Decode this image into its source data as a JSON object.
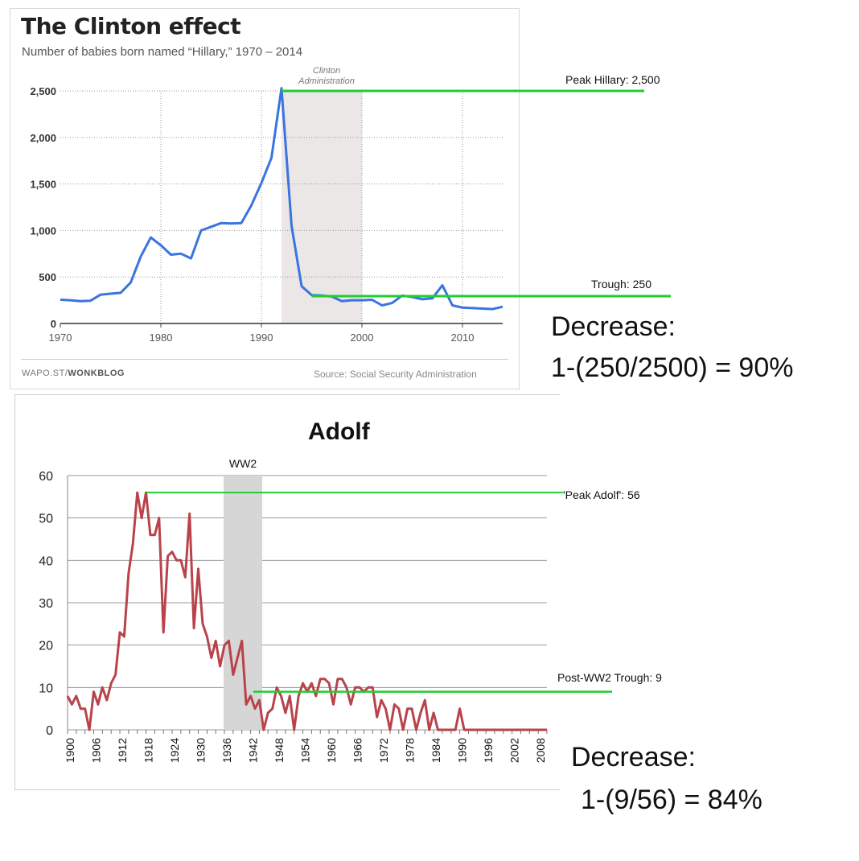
{
  "colors": {
    "hillary_line": "#3a74e0",
    "adolf_line": "#b9434a",
    "annotation_line": "#22cc33",
    "shade_clinton": "#ebe7e6",
    "shade_ww2": "#d6d6d6"
  },
  "top_panel": {
    "footer_left_prefix": "WAPO.ST/",
    "footer_left_bold": "WONKBLOG",
    "footer_right": "Source: Social Security Administration",
    "peak_label": "Peak Hillary: 2,500",
    "trough_label": "Trough: 250",
    "decrease_label": "Decrease:",
    "decrease_formula": "1-(250/2500) = 90%"
  },
  "bottom_panel": {
    "peak_label": "'Peak Adolf': 56",
    "trough_label": "Post-WW2 Trough: 9",
    "decrease_label": "Decrease:",
    "decrease_formula": "1-(9/56) = 84%"
  },
  "chart_data": [
    {
      "type": "line",
      "title": "The Clinton effect",
      "subtitle": "Number of babies born named “Hillary,” 1970 – 2014",
      "xlabel": "",
      "ylabel": "",
      "xlim": [
        1970,
        2014
      ],
      "ylim": [
        0,
        2500
      ],
      "xticks": [
        1970,
        1980,
        1990,
        2000,
        2010
      ],
      "xtick_labels": [
        "1970",
        "1980",
        "1990",
        "2000",
        "2010"
      ],
      "yticks": [
        0,
        500,
        1000,
        1500,
        2000,
        2500
      ],
      "ytick_labels": [
        "0",
        "500",
        "1,000",
        "1,500",
        "2,000",
        "2,500"
      ],
      "grid": true,
      "shaded_region": {
        "label": "Clinton Administration",
        "x": [
          1992,
          2000
        ]
      },
      "annotations": [
        {
          "label": "Peak Hillary: 2,500",
          "x_from": 1992,
          "y": 2500
        },
        {
          "label": "Trough: 250",
          "x_from": 1995,
          "y": 320
        }
      ],
      "x": [
        1970,
        1971,
        1972,
        1973,
        1974,
        1975,
        1976,
        1977,
        1978,
        1979,
        1980,
        1981,
        1982,
        1983,
        1984,
        1985,
        1986,
        1987,
        1988,
        1989,
        1990,
        1991,
        1992,
        1993,
        1994,
        1995,
        1996,
        1997,
        1998,
        1999,
        2000,
        2001,
        2002,
        2003,
        2004,
        2005,
        2006,
        2007,
        2008,
        2009,
        2010,
        2011,
        2012,
        2013,
        2014
      ],
      "y": [
        255,
        250,
        240,
        245,
        310,
        320,
        330,
        440,
        720,
        925,
        840,
        740,
        750,
        700,
        1000,
        1040,
        1080,
        1075,
        1080,
        1270,
        1510,
        1780,
        2530,
        1050,
        400,
        305,
        300,
        290,
        240,
        250,
        250,
        255,
        195,
        220,
        300,
        285,
        260,
        270,
        410,
        195,
        170,
        165,
        160,
        155,
        180
      ]
    },
    {
      "type": "line",
      "title": "Adolf",
      "xlabel": "",
      "ylabel": "",
      "xlim": [
        1900,
        2010
      ],
      "ylim": [
        0,
        60
      ],
      "yticks": [
        0,
        10,
        20,
        30,
        40,
        50,
        60
      ],
      "ytick_labels": [
        "0",
        "10",
        "20",
        "30",
        "40",
        "50",
        "60"
      ],
      "xticks": [
        1900,
        1906,
        1912,
        1918,
        1924,
        1930,
        1936,
        1942,
        1948,
        1954,
        1960,
        1966,
        1972,
        1978,
        1984,
        1990,
        1996,
        2002,
        2008
      ],
      "xtick_labels": [
        "1900",
        "1906",
        "1912",
        "1918",
        "1924",
        "1930",
        "1936",
        "1942",
        "1948",
        "1954",
        "1960",
        "1966",
        "1972",
        "1978",
        "1984",
        "1990",
        "1996",
        "2002",
        "2008"
      ],
      "grid": true,
      "shaded_region": {
        "label": "WW2",
        "x": [
          1936,
          1945
        ]
      },
      "annotations": [
        {
          "label": "'Peak Adolf': 56",
          "x_from": 1918,
          "y": 56
        },
        {
          "label": "Post-WW2 Trough: 9",
          "x_from": 1943,
          "y": 9
        }
      ],
      "x": [
        1900,
        1901,
        1902,
        1903,
        1904,
        1905,
        1906,
        1907,
        1908,
        1909,
        1910,
        1911,
        1912,
        1913,
        1914,
        1915,
        1916,
        1917,
        1918,
        1919,
        1920,
        1921,
        1922,
        1923,
        1924,
        1925,
        1926,
        1927,
        1928,
        1929,
        1930,
        1931,
        1932,
        1933,
        1934,
        1935,
        1936,
        1937,
        1938,
        1939,
        1940,
        1941,
        1942,
        1943,
        1944,
        1945,
        1946,
        1947,
        1948,
        1949,
        1950,
        1951,
        1952,
        1953,
        1954,
        1955,
        1956,
        1957,
        1958,
        1959,
        1960,
        1961,
        1962,
        1963,
        1964,
        1965,
        1966,
        1967,
        1968,
        1969,
        1970,
        1971,
        1972,
        1973,
        1974,
        1975,
        1976,
        1977,
        1978,
        1979,
        1980,
        1981,
        1982,
        1983,
        1984,
        1985,
        1986,
        1987,
        1988,
        1989,
        1990,
        1991,
        1992,
        1993,
        1994,
        1995,
        1996,
        1997,
        1998,
        1999,
        2000,
        2001,
        2002,
        2003,
        2004,
        2005,
        2006,
        2007,
        2008,
        2009,
        2010
      ],
      "y": [
        8,
        6,
        8,
        5,
        5,
        0,
        9,
        6,
        10,
        7,
        11,
        13,
        23,
        22,
        37,
        44,
        56,
        50,
        56,
        46,
        46,
        50,
        23,
        41,
        42,
        40,
        40,
        36,
        51,
        24,
        38,
        25,
        22,
        17,
        21,
        15,
        20,
        21,
        13,
        17,
        21,
        6,
        8,
        5,
        7,
        0,
        4,
        5,
        10,
        8,
        4,
        8,
        0,
        8,
        11,
        9,
        11,
        8,
        12,
        12,
        11,
        6,
        12,
        12,
        10,
        6,
        10,
        10,
        9,
        10,
        10,
        3,
        7,
        5,
        0,
        6,
        5,
        0,
        5,
        5,
        0,
        4,
        7,
        0,
        4,
        0,
        0,
        0,
        0,
        0,
        5,
        0,
        0,
        0,
        0,
        0,
        0,
        0,
        0,
        0,
        0,
        0,
        0,
        0,
        0,
        0,
        0,
        0,
        0,
        0,
        0
      ]
    }
  ]
}
